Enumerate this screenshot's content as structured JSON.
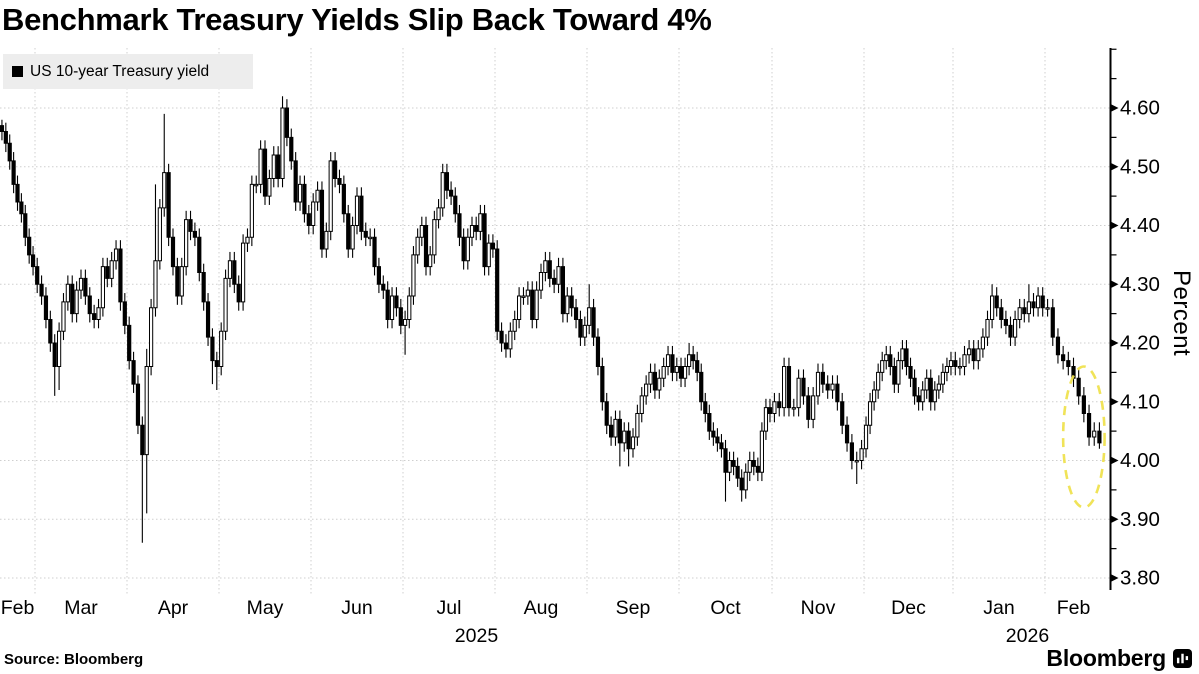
{
  "header": {
    "title": "Benchmark Treasury Yields Slip Back Toward 4%"
  },
  "legend": {
    "label": "US 10-year Treasury yield",
    "marker": "black-square"
  },
  "footer": {
    "source": "Source: Bloomberg",
    "brand": "Bloomberg",
    "brand_icon": "bloomberg-bars-icon"
  },
  "colors": {
    "up_fill": "#ffffff",
    "down_fill": "#000000",
    "outline": "#000000",
    "grid": "#cfcfcf",
    "axis": "#000000",
    "legend_bg": "#ededed",
    "annotation": "#efe24f"
  },
  "chart_data": {
    "type": "candlestick",
    "title": "Benchmark Treasury Yields Slip Back Toward 4%",
    "series_name": "US 10-year Treasury yield",
    "ylabel": "Percent",
    "ylim": [
      3.78,
      4.7
    ],
    "grid": true,
    "legend_position": "top-left",
    "y_tick_labels": [
      "3.80",
      "3.90",
      "4.00",
      "4.10",
      "4.20",
      "4.30",
      "4.40",
      "4.50",
      "4.60"
    ],
    "y_tick_values": [
      3.8,
      3.9,
      4.0,
      4.1,
      4.2,
      4.3,
      4.4,
      4.5,
      4.6
    ],
    "y_minor_tick_values": [
      3.85,
      3.95,
      4.05,
      4.15,
      4.25,
      4.35,
      4.45,
      4.55,
      4.65,
      4.7
    ],
    "first_open": 4.57,
    "months": [
      {
        "label": "Feb",
        "closes": [
          4.56,
          4.54,
          4.51,
          4.47,
          4.44,
          4.42,
          4.38,
          4.35,
          4.33
        ]
      },
      {
        "label": "Mar",
        "closes": [
          4.3,
          4.28,
          4.24,
          4.2,
          4.16,
          4.22,
          4.27,
          4.3,
          4.25,
          4.29,
          4.31,
          4.28,
          4.25,
          4.24,
          4.26,
          4.33,
          4.31,
          4.34,
          4.36,
          4.27,
          4.23
        ]
      },
      {
        "label": "Apr",
        "closes": [
          4.17,
          4.13,
          4.06,
          4.01,
          4.16,
          4.26,
          4.34,
          4.43,
          4.49,
          4.38,
          4.33,
          4.28,
          4.33,
          4.41,
          4.39,
          4.38,
          4.32,
          4.27,
          4.21,
          4.17,
          4.16
        ]
      },
      {
        "label": "May",
        "closes": [
          4.22,
          4.31,
          4.34,
          4.3,
          4.27,
          4.37,
          4.38,
          4.47,
          4.47,
          4.53,
          4.45,
          4.48,
          4.52,
          4.48,
          4.6,
          4.55,
          4.51,
          4.44,
          4.47,
          4.42,
          4.4
        ]
      },
      {
        "label": "Jun",
        "closes": [
          4.44,
          4.46,
          4.36,
          4.39,
          4.51,
          4.48,
          4.47,
          4.42,
          4.36,
          4.4,
          4.45,
          4.39,
          4.38,
          4.38,
          4.33,
          4.3,
          4.29,
          4.24,
          4.28,
          4.26,
          4.23
        ]
      },
      {
        "label": "Jul",
        "closes": [
          4.24,
          4.28,
          4.35,
          4.38,
          4.4,
          4.33,
          4.35,
          4.41,
          4.43,
          4.49,
          4.46,
          4.45,
          4.42,
          4.38,
          4.34,
          4.38,
          4.4,
          4.39,
          4.42,
          4.33,
          4.37,
          4.36
        ]
      },
      {
        "label": "Aug",
        "closes": [
          4.22,
          4.2,
          4.19,
          4.22,
          4.24,
          4.28,
          4.28,
          4.29,
          4.24,
          4.29,
          4.32,
          4.34,
          4.31,
          4.3,
          4.33,
          4.25,
          4.28,
          4.26,
          4.24,
          4.21,
          4.23
        ]
      },
      {
        "label": "Sep",
        "closes": [
          4.26,
          4.21,
          4.16,
          4.1,
          4.06,
          4.04,
          4.07,
          4.03,
          4.05,
          4.02,
          4.04,
          4.08,
          4.11,
          4.13,
          4.15,
          4.12,
          4.14,
          4.16,
          4.18,
          4.15,
          4.16
        ]
      },
      {
        "label": "Oct",
        "closes": [
          4.14,
          4.16,
          4.18,
          4.17,
          4.15,
          4.1,
          4.08,
          4.05,
          4.04,
          4.03,
          4.02,
          3.98,
          4.0,
          3.99,
          3.97,
          3.95,
          3.98,
          4.0,
          3.99,
          3.98,
          4.05,
          4.09,
          4.08
        ]
      },
      {
        "label": "Nov",
        "closes": [
          4.1,
          4.09,
          4.16,
          4.09,
          4.09,
          4.14,
          4.11,
          4.07,
          4.11,
          4.15,
          4.13,
          4.12,
          4.13,
          4.1,
          4.06,
          4.03,
          4.0,
          4.0,
          4.02
        ]
      },
      {
        "label": "Dec",
        "closes": [
          4.06,
          4.1,
          4.12,
          4.15,
          4.17,
          4.18,
          4.16,
          4.13,
          4.17,
          4.19,
          4.16,
          4.14,
          4.11,
          4.1,
          4.12,
          4.14,
          4.1,
          4.12,
          4.13,
          4.15,
          4.16,
          4.17
        ]
      },
      {
        "label": "Jan",
        "closes": [
          4.16,
          4.16,
          4.18,
          4.19,
          4.17,
          4.19,
          4.21,
          4.24,
          4.28,
          4.26,
          4.24,
          4.23,
          4.21,
          4.24,
          4.26,
          4.25,
          4.27,
          4.26,
          4.28,
          4.26
        ]
      },
      {
        "label": "Feb",
        "closes": [
          4.26,
          4.21,
          4.18,
          4.17,
          4.16,
          4.14,
          4.11,
          4.08,
          4.04,
          4.05,
          4.03
        ]
      }
    ],
    "year_labels": [
      {
        "text": "2025",
        "month_span": [
          0,
          10
        ]
      },
      {
        "text": "2026",
        "month_span": [
          11,
          12
        ]
      }
    ],
    "wick_overrides": {
      "0": [
        4.58,
        null
      ],
      "13": [
        null,
        4.11
      ],
      "14": [
        null,
        4.12
      ],
      "33": [
        null,
        3.86
      ],
      "34": [
        4.19,
        3.91
      ],
      "36": [
        4.47,
        null
      ],
      "38": [
        4.59,
        null
      ],
      "49": [
        null,
        4.13
      ],
      "50": [
        null,
        4.12
      ],
      "65": [
        4.62,
        null
      ],
      "93": [
        null,
        4.18
      ],
      "136": [
        4.3,
        null
      ],
      "143": [
        null,
        3.99
      ],
      "145": [
        null,
        3.99
      ],
      "159": [
        4.2,
        null
      ],
      "168": [
        null,
        3.93
      ],
      "172": [
        null,
        3.93
      ],
      "197": [
        null,
        3.96
      ],
      "229": [
        4.3,
        null
      ],
      "237": [
        4.3,
        null
      ],
      "251": [
        null,
        4.02
      ]
    },
    "annotation": {
      "shape": "dashed-ellipse",
      "purpose": "highlights latest slide toward 4%",
      "center_bar_index": 248,
      "center_value": 4.04,
      "bar_radius": 4,
      "value_radius": 0.12
    }
  }
}
